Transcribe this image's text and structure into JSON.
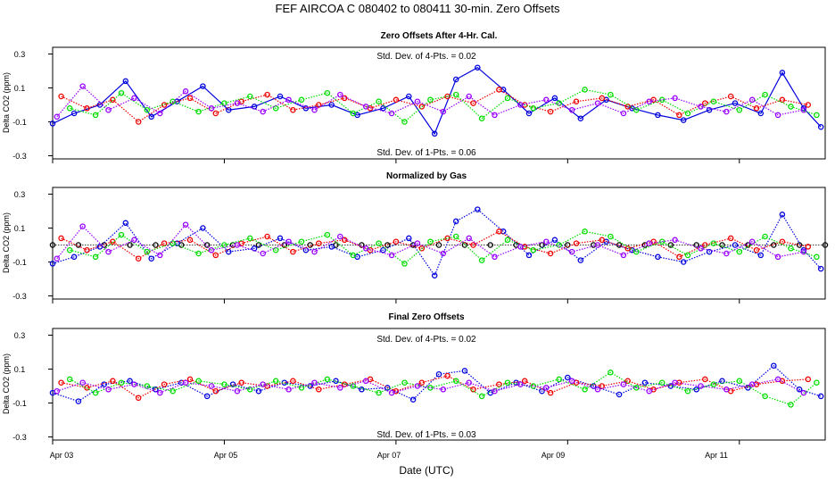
{
  "figure": {
    "title": "FEF   AIRCOA C   080402 to 080411   30-min. Zero Offsets",
    "xlabel": "Date (UTC)",
    "x_ticks": [
      "Apr 03",
      "Apr 05",
      "Apr 07",
      "Apr 09",
      "Apr 11"
    ],
    "colors": {
      "blue": "#0000dd",
      "red": "#ee0000",
      "green": "#00dd00",
      "purple": "#9900ff",
      "black": "#000000"
    }
  },
  "panels": [
    {
      "title": "Zero Offsets After 4-Hr. Cal.",
      "ylabel": "Delta CO2 (ppm)",
      "y_ticks": [
        "0.3",
        "0.1",
        "-0.1",
        "-0.3"
      ],
      "ann_top": "Std. Dev. of 4-Pts. =  0.02",
      "ann_bottom": "Std. Dev. of 1-Pts. =  0.06"
    },
    {
      "title": "Normalized by Gas",
      "ylabel": "Delta CO2 (ppm)",
      "y_ticks": [
        "0.3",
        "0.1",
        "-0.1",
        "-0.3"
      ]
    },
    {
      "title": "Final Zero Offsets",
      "ylabel": "Delta CO2 (ppm)",
      "y_ticks": [
        "0.3",
        "0.1",
        "-0.1",
        "-0.3"
      ],
      "ann_top": "Std. Dev. of 4-Pts. =  0.02",
      "ann_bottom": "Std. Dev. of 1-Pts. =  0.03"
    }
  ],
  "chart_data": [
    {
      "type": "scatter",
      "title": "Zero Offsets After 4-Hr. Cal.",
      "xlabel": "",
      "ylabel": "Delta CO2 (ppm)",
      "xlim": [
        3.0,
        12.0
      ],
      "ylim": [
        -0.33,
        0.33
      ],
      "x_ticks": [
        3,
        5,
        7,
        9,
        11
      ],
      "x_tick_labels": [
        "Apr 03",
        "Apr 05",
        "Apr 07",
        "Apr 09",
        "Apr 11"
      ],
      "series": [
        {
          "name": "blue",
          "color": "#0000dd",
          "x": [
            3.0,
            3.25,
            3.55,
            3.85,
            4.15,
            4.45,
            4.75,
            5.05,
            5.35,
            5.65,
            5.95,
            6.25,
            6.55,
            6.85,
            7.15,
            7.45,
            7.7,
            7.95,
            8.25,
            8.55,
            8.85,
            9.15,
            9.45,
            9.75,
            10.05,
            10.35,
            10.65,
            10.95,
            11.25,
            11.5,
            11.75,
            11.95
          ],
          "y": [
            -0.11,
            -0.05,
            0.0,
            0.14,
            -0.07,
            0.02,
            0.11,
            -0.03,
            -0.01,
            0.05,
            -0.02,
            0.0,
            -0.06,
            -0.02,
            0.05,
            -0.17,
            0.15,
            0.22,
            0.09,
            -0.05,
            0.04,
            -0.08,
            0.03,
            -0.02,
            -0.06,
            -0.09,
            -0.03,
            0.01,
            -0.05,
            0.19,
            -0.02,
            -0.13
          ]
        },
        {
          "name": "red",
          "color": "#ee0000",
          "x": [
            3.1,
            3.4,
            3.7,
            4.0,
            4.3,
            4.6,
            4.9,
            5.2,
            5.5,
            5.8,
            6.1,
            6.4,
            6.7,
            7.0,
            7.3,
            7.6,
            7.9,
            8.2,
            8.5,
            8.8,
            9.1,
            9.4,
            9.7,
            10.0,
            10.3,
            10.6,
            10.9,
            11.2,
            11.5,
            11.8
          ],
          "y": [
            0.05,
            -0.02,
            0.03,
            -0.1,
            0.0,
            0.04,
            -0.05,
            0.02,
            0.06,
            -0.03,
            0.0,
            0.04,
            -0.02,
            0.03,
            -0.01,
            0.05,
            0.01,
            0.09,
            0.0,
            -0.04,
            0.02,
            0.04,
            -0.01,
            0.03,
            -0.06,
            0.01,
            0.05,
            -0.02,
            0.03,
            0.0
          ]
        },
        {
          "name": "green",
          "color": "#00dd00",
          "x": [
            3.2,
            3.5,
            3.8,
            4.1,
            4.4,
            4.7,
            5.0,
            5.3,
            5.6,
            5.9,
            6.2,
            6.5,
            6.8,
            7.1,
            7.4,
            7.7,
            8.0,
            8.3,
            8.6,
            8.9,
            9.2,
            9.5,
            9.8,
            10.1,
            10.4,
            10.7,
            11.0,
            11.3,
            11.6,
            11.9
          ],
          "y": [
            -0.02,
            -0.06,
            0.07,
            -0.03,
            0.02,
            -0.04,
            0.01,
            0.05,
            -0.02,
            0.03,
            0.07,
            -0.05,
            0.02,
            -0.1,
            0.03,
            0.06,
            -0.08,
            0.04,
            -0.02,
            0.01,
            0.09,
            0.06,
            -0.03,
            0.03,
            -0.05,
            0.02,
            -0.03,
            0.06,
            -0.01,
            -0.06
          ]
        },
        {
          "name": "purple",
          "color": "#9900ff",
          "x": [
            3.05,
            3.35,
            3.65,
            3.95,
            4.25,
            4.55,
            4.85,
            5.15,
            5.45,
            5.75,
            6.05,
            6.35,
            6.65,
            6.95,
            7.25,
            7.55,
            7.85,
            8.15,
            8.45,
            8.75,
            9.05,
            9.35,
            9.65,
            9.95,
            10.25,
            10.55,
            10.85,
            11.15,
            11.45,
            11.75
          ],
          "y": [
            -0.07,
            0.11,
            -0.03,
            0.04,
            -0.05,
            0.08,
            -0.02,
            0.01,
            -0.04,
            0.03,
            -0.03,
            0.06,
            -0.01,
            -0.05,
            0.02,
            -0.04,
            0.05,
            -0.06,
            0.0,
            0.03,
            -0.03,
            0.01,
            -0.05,
            0.02,
            0.04,
            -0.01,
            -0.04,
            0.03,
            -0.06,
            -0.03
          ]
        }
      ]
    },
    {
      "type": "scatter",
      "title": "Normalized by Gas",
      "xlabel": "",
      "ylabel": "Delta CO2 (ppm)",
      "xlim": [
        3.0,
        12.0
      ],
      "ylim": [
        -0.33,
        0.33
      ],
      "x_ticks": [
        3,
        5,
        7,
        9,
        11
      ],
      "x_tick_labels": [
        "Apr 03",
        "Apr 05",
        "Apr 07",
        "Apr 09",
        "Apr 11"
      ],
      "series": [
        {
          "name": "black",
          "color": "#000000",
          "x": [
            3.0,
            3.3,
            3.6,
            3.9,
            4.2,
            4.5,
            4.8,
            5.1,
            5.4,
            5.7,
            6.0,
            6.3,
            6.6,
            6.9,
            7.2,
            7.5,
            7.8,
            8.1,
            8.4,
            8.7,
            9.0,
            9.3,
            9.6,
            9.9,
            10.2,
            10.5,
            10.8,
            11.1,
            11.4,
            11.7,
            12.0
          ],
          "y": [
            0.0,
            0.0,
            0.0,
            0.0,
            0.0,
            0.0,
            0.0,
            0.0,
            0.0,
            0.0,
            0.0,
            0.0,
            0.0,
            0.0,
            0.0,
            0.0,
            0.0,
            0.0,
            0.0,
            0.0,
            0.0,
            0.0,
            0.0,
            0.0,
            0.0,
            0.0,
            0.0,
            0.0,
            0.0,
            0.0,
            0.0
          ]
        },
        {
          "name": "blue",
          "color": "#0000dd",
          "x": [
            3.0,
            3.25,
            3.55,
            3.85,
            4.15,
            4.45,
            4.75,
            5.05,
            5.35,
            5.65,
            5.95,
            6.25,
            6.55,
            6.85,
            7.15,
            7.45,
            7.7,
            7.95,
            8.25,
            8.55,
            8.85,
            9.15,
            9.45,
            9.75,
            10.05,
            10.35,
            10.65,
            10.95,
            11.25,
            11.5,
            11.75,
            11.95
          ],
          "y": [
            -0.11,
            -0.07,
            -0.01,
            0.13,
            -0.08,
            0.01,
            0.1,
            -0.04,
            -0.02,
            0.04,
            -0.03,
            -0.01,
            -0.07,
            -0.03,
            0.04,
            -0.18,
            0.14,
            0.21,
            0.08,
            -0.06,
            0.03,
            -0.09,
            0.02,
            -0.03,
            -0.07,
            -0.1,
            -0.04,
            0.0,
            -0.06,
            0.18,
            -0.03,
            -0.14
          ]
        },
        {
          "name": "red",
          "color": "#ee0000",
          "x": [
            3.1,
            3.4,
            3.7,
            4.0,
            4.3,
            4.6,
            4.9,
            5.2,
            5.5,
            5.8,
            6.1,
            6.4,
            6.7,
            7.0,
            7.3,
            7.6,
            7.9,
            8.2,
            8.5,
            8.8,
            9.1,
            9.4,
            9.7,
            10.0,
            10.3,
            10.6,
            10.9,
            11.2,
            11.5,
            11.8
          ],
          "y": [
            0.04,
            -0.03,
            0.02,
            -0.08,
            0.01,
            0.03,
            -0.06,
            0.01,
            0.05,
            -0.04,
            0.01,
            0.03,
            -0.03,
            0.02,
            -0.02,
            0.04,
            0.0,
            0.08,
            -0.01,
            -0.05,
            0.01,
            0.03,
            -0.02,
            0.02,
            -0.07,
            0.0,
            0.04,
            -0.03,
            0.02,
            -0.01
          ]
        },
        {
          "name": "green",
          "color": "#00dd00",
          "x": [
            3.2,
            3.5,
            3.8,
            4.1,
            4.4,
            4.7,
            5.0,
            5.3,
            5.6,
            5.9,
            6.2,
            6.5,
            6.8,
            7.1,
            7.4,
            7.7,
            8.0,
            8.3,
            8.6,
            8.9,
            9.2,
            9.5,
            9.8,
            10.1,
            10.4,
            10.7,
            11.0,
            11.3,
            11.6,
            11.9
          ],
          "y": [
            -0.03,
            -0.07,
            0.06,
            -0.04,
            0.01,
            -0.05,
            0.0,
            0.04,
            -0.03,
            0.02,
            0.06,
            -0.06,
            0.01,
            -0.11,
            0.02,
            0.05,
            -0.09,
            0.03,
            -0.03,
            0.0,
            0.08,
            0.05,
            -0.04,
            0.02,
            -0.06,
            0.01,
            -0.04,
            0.05,
            -0.02,
            -0.07
          ]
        },
        {
          "name": "purple",
          "color": "#9900ff",
          "x": [
            3.05,
            3.35,
            3.65,
            3.95,
            4.25,
            4.55,
            4.85,
            5.15,
            5.45,
            5.75,
            6.05,
            6.35,
            6.65,
            6.95,
            7.25,
            7.55,
            7.85,
            8.15,
            8.45,
            8.75,
            9.05,
            9.35,
            9.65,
            9.95,
            10.25,
            10.55,
            10.85,
            11.15,
            11.45,
            11.75
          ],
          "y": [
            -0.08,
            0.11,
            -0.04,
            0.03,
            -0.06,
            0.12,
            -0.03,
            0.0,
            -0.05,
            0.02,
            -0.04,
            0.05,
            -0.02,
            -0.06,
            0.01,
            -0.05,
            0.04,
            -0.07,
            -0.01,
            0.02,
            -0.04,
            0.0,
            -0.06,
            0.01,
            0.03,
            -0.02,
            -0.05,
            0.02,
            -0.07,
            -0.04
          ]
        }
      ]
    },
    {
      "type": "scatter",
      "title": "Final Zero Offsets",
      "xlabel": "Date (UTC)",
      "ylabel": "Delta CO2 (ppm)",
      "xlim": [
        3.0,
        12.0
      ],
      "ylim": [
        -0.33,
        0.33
      ],
      "x_ticks": [
        3,
        5,
        7,
        9,
        11
      ],
      "x_tick_labels": [
        "Apr 03",
        "Apr 05",
        "Apr 07",
        "Apr 09",
        "Apr 11"
      ],
      "series": [
        {
          "name": "blue",
          "color": "#0000dd",
          "x": [
            3.0,
            3.3,
            3.6,
            3.9,
            4.2,
            4.5,
            4.8,
            5.1,
            5.4,
            5.7,
            6.0,
            6.3,
            6.6,
            6.9,
            7.2,
            7.5,
            7.8,
            8.1,
            8.4,
            8.7,
            9.0,
            9.3,
            9.6,
            9.9,
            10.2,
            10.5,
            10.8,
            11.1,
            11.4,
            11.7,
            11.95
          ],
          "y": [
            -0.04,
            -0.09,
            0.01,
            0.03,
            -0.02,
            0.02,
            -0.06,
            0.01,
            -0.03,
            0.02,
            0.0,
            0.03,
            -0.02,
            -0.01,
            -0.08,
            0.07,
            0.09,
            -0.04,
            0.02,
            -0.03,
            0.05,
            0.0,
            -0.05,
            0.02,
            0.0,
            -0.02,
            0.03,
            -0.01,
            0.12,
            -0.02,
            -0.06
          ]
        },
        {
          "name": "red",
          "color": "#ee0000",
          "x": [
            3.1,
            3.4,
            3.7,
            4.0,
            4.3,
            4.6,
            4.9,
            5.2,
            5.5,
            5.8,
            6.1,
            6.4,
            6.7,
            7.0,
            7.3,
            7.6,
            7.9,
            8.2,
            8.5,
            8.8,
            9.1,
            9.4,
            9.7,
            10.0,
            10.3,
            10.6,
            10.9,
            11.2,
            11.5,
            11.8
          ],
          "y": [
            0.02,
            -0.01,
            0.03,
            -0.07,
            0.01,
            0.04,
            -0.03,
            0.02,
            0.0,
            0.03,
            -0.02,
            0.01,
            0.04,
            -0.03,
            0.02,
            0.06,
            -0.02,
            0.01,
            0.03,
            -0.04,
            0.02,
            0.0,
            0.03,
            -0.02,
            0.02,
            0.04,
            -0.03,
            0.01,
            0.03,
            0.04
          ]
        },
        {
          "name": "green",
          "color": "#00dd00",
          "x": [
            3.2,
            3.5,
            3.8,
            4.1,
            4.4,
            4.7,
            5.0,
            5.3,
            5.6,
            5.9,
            6.2,
            6.5,
            6.8,
            7.1,
            7.4,
            7.7,
            8.0,
            8.3,
            8.6,
            8.9,
            9.2,
            9.5,
            9.8,
            10.1,
            10.4,
            10.7,
            11.0,
            11.3,
            11.6,
            11.9
          ],
          "y": [
            0.04,
            -0.04,
            0.02,
            0.0,
            -0.03,
            0.03,
            0.01,
            -0.02,
            0.03,
            -0.01,
            0.04,
            0.0,
            -0.04,
            0.02,
            -0.01,
            0.03,
            -0.06,
            0.02,
            0.0,
            0.04,
            -0.02,
            0.08,
            -0.01,
            0.02,
            -0.03,
            0.01,
            0.03,
            -0.06,
            -0.11,
            0.02
          ]
        },
        {
          "name": "purple",
          "color": "#9900ff",
          "x": [
            3.05,
            3.35,
            3.65,
            3.95,
            4.25,
            4.55,
            4.85,
            5.15,
            5.45,
            5.75,
            6.05,
            6.35,
            6.65,
            6.95,
            7.25,
            7.55,
            7.85,
            8.15,
            8.45,
            8.75,
            9.05,
            9.35,
            9.65,
            9.95,
            10.25,
            10.55,
            10.85,
            11.15,
            11.45,
            11.75
          ],
          "y": [
            -0.03,
            0.02,
            -0.02,
            0.01,
            -0.04,
            0.02,
            0.0,
            -0.03,
            0.01,
            -0.02,
            0.02,
            -0.01,
            0.03,
            -0.04,
            0.0,
            -0.02,
            0.02,
            -0.03,
            0.01,
            -0.01,
            0.03,
            -0.02,
            0.01,
            -0.03,
            0.02,
            0.0,
            -0.02,
            0.01,
            0.04,
            -0.04
          ]
        }
      ]
    }
  ]
}
